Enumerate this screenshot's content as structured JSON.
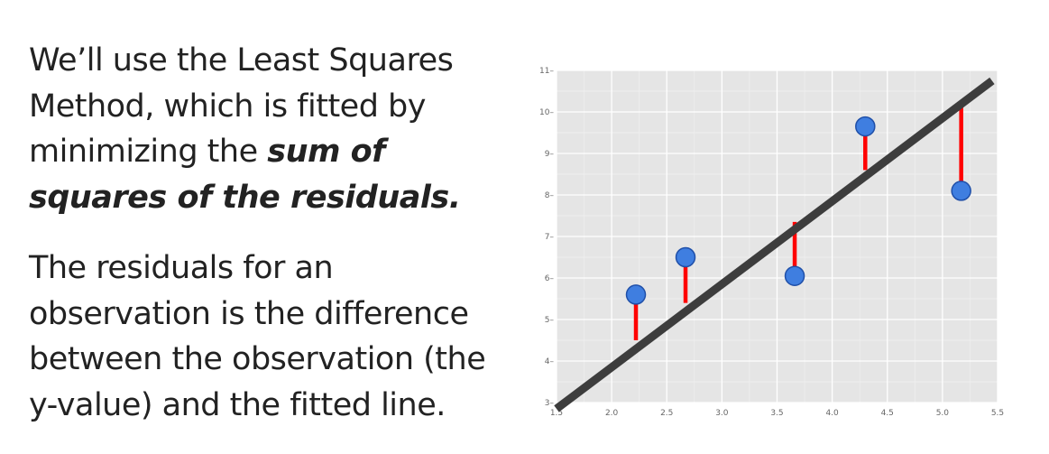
{
  "text": {
    "p1_before": "We’ll use the Least Squares Method, which is fitted by minimizing the ",
    "p1_emph": "sum of squares of the residuals.",
    "p2": "The residuals for an observation is the difference between the observation (the y-value) and the fitted line."
  },
  "colors": {
    "background": "#ffffff",
    "plot_bg": "#e5e5e5",
    "grid": "#ffffff",
    "line": "#3d3d3d",
    "residual": "#ff0000",
    "point_fill": "#3f7ee0",
    "point_stroke": "#1f4fa8"
  },
  "chart_data": {
    "type": "scatter",
    "title": "",
    "xlabel": "",
    "ylabel": "",
    "xlim": [
      1.5,
      5.5
    ],
    "ylim": [
      3,
      11
    ],
    "x_ticks": [
      "1.5",
      "2.0",
      "2.5",
      "3.0",
      "3.5",
      "4.0",
      "4.5",
      "5.0",
      "5.5"
    ],
    "y_ticks": [
      "3",
      "4",
      "5",
      "6",
      "7",
      "8",
      "9",
      "10",
      "11"
    ],
    "grid": true,
    "points": [
      {
        "x": 2.22,
        "y": 5.6
      },
      {
        "x": 2.67,
        "y": 6.5
      },
      {
        "x": 3.66,
        "y": 6.05
      },
      {
        "x": 4.3,
        "y": 9.65
      },
      {
        "x": 5.17,
        "y": 8.1
      }
    ],
    "fitted_line": {
      "x": [
        1.5,
        5.45
      ],
      "y": [
        2.85,
        10.75
      ]
    },
    "residuals": [
      {
        "x": 2.22,
        "y_obs": 5.6,
        "y_fit": 4.5
      },
      {
        "x": 2.67,
        "y_obs": 6.5,
        "y_fit": 5.4
      },
      {
        "x": 3.66,
        "y_obs": 6.05,
        "y_fit": 7.35
      },
      {
        "x": 4.3,
        "y_obs": 9.65,
        "y_fit": 8.6
      },
      {
        "x": 5.17,
        "y_obs": 8.1,
        "y_fit": 10.2
      }
    ]
  }
}
